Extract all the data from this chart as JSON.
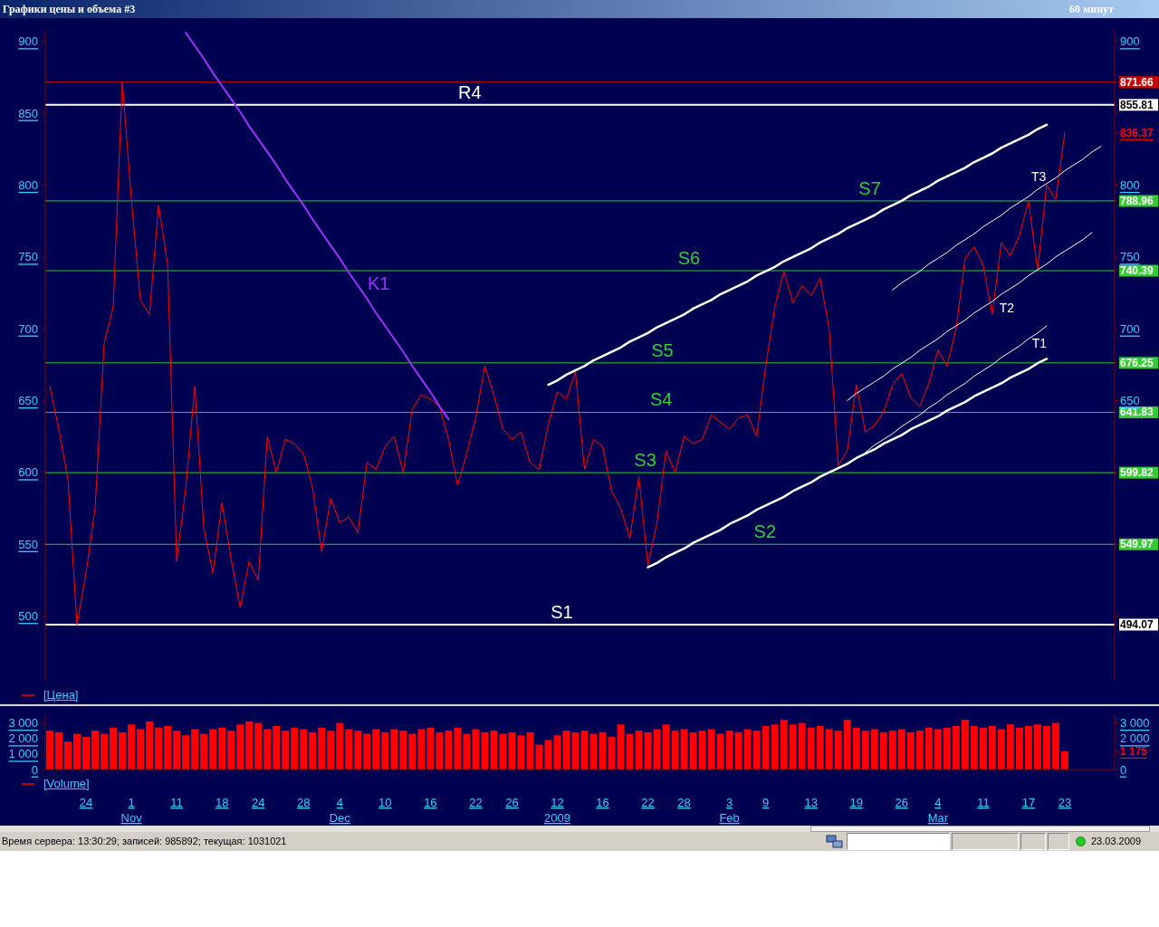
{
  "chart_data": [
    {
      "type": "line",
      "title": "Графики цены и объема #3",
      "subtitle": "60 минут",
      "categories": [
        null,
        null,
        null,
        null,
        null,
        null,
        null,
        null,
        null,
        null,
        null,
        null,
        null,
        null,
        null,
        null,
        null,
        null,
        null,
        null,
        null,
        null,
        null,
        null,
        null,
        null,
        null,
        null,
        null,
        null,
        null,
        null,
        null,
        null,
        null,
        null,
        null,
        null,
        null,
        null,
        null,
        null,
        null,
        null,
        null,
        null,
        null,
        null,
        null,
        null,
        null,
        null,
        null,
        null,
        null,
        null,
        null,
        null,
        null,
        null,
        null,
        null,
        null,
        null,
        null,
        null,
        null,
        null,
        null,
        null,
        null,
        null,
        null,
        null,
        null,
        null,
        null,
        null,
        null,
        null,
        null,
        null,
        null,
        null,
        null,
        null,
        null,
        null,
        null,
        null,
        null,
        null,
        null,
        null,
        null,
        null,
        null,
        null,
        null,
        null,
        null,
        null,
        null,
        null,
        null,
        null,
        null,
        null,
        null,
        null,
        null,
        null,
        null,
        null,
        null,
        null,
        null,
        null
      ],
      "ylim": [
        455,
        908
      ],
      "yticks": [
        500,
        550,
        600,
        650,
        700,
        750,
        800,
        850,
        900
      ],
      "y2lim": [
        455,
        908
      ],
      "y2ticks": [
        494.07,
        {
          "value": 500,
          "label": null
        },
        549.97,
        {
          "value": 550,
          "label": null
        },
        599.82,
        {
          "value": 600,
          "label": null
        },
        641.83,
        650,
        676.25,
        700,
        740.39,
        750,
        788.96,
        800,
        836.37,
        {
          "value": 850,
          "label": null
        },
        855.81,
        871.66,
        900
      ],
      "tick_labels": "y",
      "legend": "bottom left",
      "series": [
        {
          "name": "[Цена]",
          "color": "#ff0000",
          "values": [
            660,
            630,
            595,
            494,
            530,
            575,
            690,
            715,
            872,
            790,
            720,
            710,
            786,
            745,
            538,
            589,
            660,
            561,
            530,
            579,
            540,
            506,
            538,
            525,
            625,
            600,
            623,
            620,
            613,
            589,
            545,
            582,
            565,
            569,
            558,
            607,
            602,
            618,
            625,
            600,
            644,
            654,
            651,
            646,
            623,
            591,
            613,
            638,
            674,
            654,
            630,
            623,
            628,
            607,
            602,
            633,
            656,
            651,
            670,
            602,
            623,
            618,
            587,
            575,
            554,
            597,
            535,
            565,
            615,
            600,
            625,
            620,
            623,
            640,
            635,
            630,
            638,
            640,
            625,
            674,
            715,
            740,
            718,
            730,
            723,
            735,
            700,
            605,
            615,
            661,
            628,
            633,
            642,
            661,
            669,
            652,
            646,
            662,
            685,
            674,
            700,
            749,
            757,
            744,
            710,
            760,
            751,
            765,
            789,
            741,
            800,
            790,
            836.37,
            null,
            null,
            null,
            null,
            null
          ]
        },
        {
          "name": "K1",
          "color": "#9933ff",
          "values": [
            null,
            null,
            null,
            null,
            null,
            null,
            null,
            null,
            null,
            null,
            null,
            null,
            null,
            null,
            null,
            906,
            897,
            888,
            878,
            869,
            860,
            851,
            841,
            832,
            823,
            814,
            804,
            795,
            786,
            776,
            767,
            758,
            749,
            739,
            730,
            721,
            711,
            702,
            693,
            684,
            674,
            665,
            656,
            646,
            637,
            null,
            null,
            null,
            null,
            null,
            null,
            null,
            null,
            null,
            null,
            null,
            null,
            null,
            null,
            null,
            null,
            null,
            null,
            null,
            null,
            null,
            null,
            null,
            null,
            null,
            null,
            null,
            null,
            null,
            null,
            null,
            null,
            null,
            null,
            null,
            null,
            null,
            null,
            null,
            null,
            null,
            null,
            null,
            null,
            null,
            null,
            null,
            null,
            null,
            null,
            null,
            null,
            null,
            null,
            null,
            null,
            null,
            null,
            null,
            null,
            null,
            null,
            null,
            null,
            null,
            null,
            null,
            null,
            null,
            null,
            null,
            null,
            null
          ]
        },
        {
          "color": "#ffffff",
          "values": [
            null,
            null,
            null,
            null,
            null,
            null,
            null,
            null,
            null,
            null,
            null,
            null,
            null,
            null,
            null,
            null,
            null,
            null,
            null,
            null,
            null,
            null,
            null,
            null,
            null,
            null,
            null,
            null,
            null,
            null,
            null,
            null,
            null,
            null,
            null,
            null,
            null,
            null,
            null,
            null,
            null,
            null,
            null,
            null,
            null,
            null,
            null,
            null,
            null,
            null,
            null,
            null,
            null,
            null,
            null,
            661,
            664,
            668,
            671,
            674,
            678,
            681,
            684,
            687,
            691,
            694,
            697,
            701,
            704,
            707,
            710,
            714,
            717,
            720,
            724,
            727,
            730,
            733,
            737,
            740,
            743,
            747,
            750,
            753,
            756,
            760,
            763,
            766,
            770,
            773,
            776,
            779,
            783,
            786,
            789,
            793,
            796,
            799,
            803,
            806,
            809,
            812,
            816,
            819,
            822,
            826,
            829,
            832,
            835,
            839,
            842,
            null,
            null,
            null,
            null,
            null,
            null,
            null
          ]
        },
        {
          "color": "#ffffff",
          "values": [
            null,
            null,
            null,
            null,
            null,
            null,
            null,
            null,
            null,
            null,
            null,
            null,
            null,
            null,
            null,
            null,
            null,
            null,
            null,
            null,
            null,
            null,
            null,
            null,
            null,
            null,
            null,
            null,
            null,
            null,
            null,
            null,
            null,
            null,
            null,
            null,
            null,
            null,
            null,
            null,
            null,
            null,
            null,
            null,
            null,
            null,
            null,
            null,
            null,
            null,
            null,
            null,
            null,
            null,
            null,
            null,
            null,
            null,
            null,
            null,
            null,
            null,
            null,
            null,
            null,
            null,
            534,
            537,
            541,
            544,
            547,
            551,
            554,
            557,
            560,
            564,
            567,
            570,
            574,
            577,
            580,
            583,
            587,
            590,
            593,
            597,
            600,
            603,
            606,
            610,
            613,
            616,
            620,
            623,
            626,
            630,
            633,
            636,
            639,
            643,
            646,
            649,
            653,
            656,
            659,
            662,
            666,
            669,
            672,
            676,
            679,
            null,
            null,
            null,
            null,
            null,
            null,
            null
          ]
        },
        {
          "name": "T1",
          "color": "#ffffff",
          "values": [
            null,
            null,
            null,
            null,
            null,
            null,
            null,
            null,
            null,
            null,
            null,
            null,
            null,
            null,
            null,
            null,
            null,
            null,
            null,
            null,
            null,
            null,
            null,
            null,
            null,
            null,
            null,
            null,
            null,
            null,
            null,
            null,
            null,
            null,
            null,
            null,
            null,
            null,
            null,
            null,
            null,
            null,
            null,
            null,
            null,
            null,
            null,
            null,
            null,
            null,
            null,
            null,
            null,
            null,
            null,
            null,
            null,
            null,
            null,
            null,
            null,
            null,
            null,
            null,
            null,
            null,
            null,
            null,
            null,
            null,
            null,
            null,
            null,
            null,
            null,
            null,
            null,
            null,
            null,
            null,
            null,
            null,
            null,
            null,
            null,
            null,
            null,
            null,
            null,
            null,
            614,
            619,
            623,
            627,
            632,
            636,
            640,
            645,
            649,
            654,
            658,
            662,
            667,
            671,
            675,
            680,
            684,
            688,
            693,
            697,
            702,
            null,
            null,
            null,
            null,
            null,
            null,
            null
          ]
        },
        {
          "name": "T2",
          "color": "#ffffff",
          "values": [
            null,
            null,
            null,
            null,
            null,
            null,
            null,
            null,
            null,
            null,
            null,
            null,
            null,
            null,
            null,
            null,
            null,
            null,
            null,
            null,
            null,
            null,
            null,
            null,
            null,
            null,
            null,
            null,
            null,
            null,
            null,
            null,
            null,
            null,
            null,
            null,
            null,
            null,
            null,
            null,
            null,
            null,
            null,
            null,
            null,
            null,
            null,
            null,
            null,
            null,
            null,
            null,
            null,
            null,
            null,
            null,
            null,
            null,
            null,
            null,
            null,
            null,
            null,
            null,
            null,
            null,
            null,
            null,
            null,
            null,
            null,
            null,
            null,
            null,
            null,
            null,
            null,
            null,
            null,
            null,
            null,
            null,
            null,
            null,
            null,
            null,
            null,
            null,
            650,
            655,
            659,
            663,
            667,
            672,
            676,
            680,
            685,
            689,
            693,
            698,
            702,
            706,
            711,
            715,
            719,
            724,
            728,
            732,
            737,
            741,
            745,
            750,
            754,
            758,
            762,
            767,
            null,
            null
          ]
        },
        {
          "name": "T3",
          "color": "#ffffff",
          "values": [
            null,
            null,
            null,
            null,
            null,
            null,
            null,
            null,
            null,
            null,
            null,
            null,
            null,
            null,
            null,
            null,
            null,
            null,
            null,
            null,
            null,
            null,
            null,
            null,
            null,
            null,
            null,
            null,
            null,
            null,
            null,
            null,
            null,
            null,
            null,
            null,
            null,
            null,
            null,
            null,
            null,
            null,
            null,
            null,
            null,
            null,
            null,
            null,
            null,
            null,
            null,
            null,
            null,
            null,
            null,
            null,
            null,
            null,
            null,
            null,
            null,
            null,
            null,
            null,
            null,
            null,
            null,
            null,
            null,
            null,
            null,
            null,
            null,
            null,
            null,
            null,
            null,
            null,
            null,
            null,
            null,
            null,
            null,
            null,
            null,
            null,
            null,
            null,
            null,
            null,
            null,
            null,
            null,
            727,
            732,
            736,
            740,
            745,
            749,
            753,
            758,
            762,
            766,
            771,
            775,
            779,
            784,
            788,
            792,
            797,
            801,
            805,
            810,
            814,
            818,
            823,
            827,
            null
          ]
        }
      ],
      "ref_lines": [
        {
          "axis": "y",
          "value": 871.66,
          "color": "#cc0000"
        },
        {
          "axis": "y",
          "value": 855.81,
          "label": "R4",
          "color": "#ffffff"
        },
        {
          "axis": "y",
          "value": 788.96,
          "label": "S7",
          "color": "#33cc33"
        },
        {
          "axis": "y",
          "value": 740.39,
          "label": "S6",
          "color": "#33cc33"
        },
        {
          "axis": "y",
          "value": 676.25,
          "label": "S5",
          "color": "#33cc33"
        },
        {
          "axis": "y",
          "value": 641.83,
          "label": "S4",
          "color": "#33cc33"
        },
        {
          "axis": "y",
          "value": 599.82,
          "label": "S3",
          "color": "#33cc33"
        },
        {
          "axis": "y",
          "value": 549.97,
          "label": "S2",
          "color": "#33cc33"
        },
        {
          "axis": "y",
          "value": 494.07,
          "label": "S1",
          "color": "#ffffff"
        }
      ]
    },
    {
      "type": "bar",
      "categories": [
        null,
        null,
        null,
        null,
        "24",
        null,
        null,
        null,
        null,
        "1\nNov",
        null,
        null,
        null,
        null,
        "11",
        null,
        null,
        null,
        null,
        "18",
        null,
        null,
        null,
        "24",
        null,
        null,
        null,
        null,
        "28",
        null,
        null,
        null,
        "4\nDec",
        null,
        null,
        null,
        null,
        "10",
        null,
        null,
        null,
        null,
        "16",
        null,
        null,
        null,
        null,
        "22",
        null,
        null,
        null,
        "26",
        null,
        null,
        null,
        null,
        "12\n2009",
        null,
        null,
        null,
        null,
        "16",
        null,
        null,
        null,
        null,
        "22",
        null,
        null,
        null,
        "28",
        null,
        null,
        null,
        null,
        "3\nFeb",
        null,
        null,
        null,
        "9",
        null,
        null,
        null,
        null,
        "13",
        null,
        null,
        null,
        null,
        "19",
        null,
        null,
        null,
        null,
        "26",
        null,
        null,
        null,
        "4\nMar",
        null,
        null,
        null,
        null,
        "11",
        null,
        null,
        null,
        null,
        "17",
        null,
        null,
        null,
        "23",
        null,
        null,
        null,
        null,
        null
      ],
      "ylim": [
        0,
        3500
      ],
      "yticks": [
        0,
        {
          "value": 1000,
          "label": "1 000"
        },
        {
          "value": 2000,
          "label": "2 000"
        },
        {
          "value": 3000,
          "label": "3 000"
        }
      ],
      "y2lim": [
        0,
        3500
      ],
      "y2ticks": [
        0,
        {
          "value": 1000,
          "label": null
        },
        {
          "value": 1175,
          "label": "1 175"
        },
        {
          "value": 2000,
          "label": "2 000"
        },
        {
          "value": 3000,
          "label": "3 000"
        }
      ],
      "legend": "bottom left",
      "series": [
        {
          "name": "[Volume]",
          "color": "#ff0000",
          "values": [
            2500,
            2400,
            1800,
            2300,
            2100,
            2500,
            2300,
            2700,
            2400,
            2900,
            2600,
            3100,
            2700,
            2800,
            2500,
            2200,
            2600,
            2300,
            2600,
            2700,
            2500,
            2900,
            3100,
            3000,
            2600,
            2800,
            2500,
            2700,
            2600,
            2400,
            2700,
            2500,
            3000,
            2600,
            2500,
            2300,
            2600,
            2400,
            2600,
            2500,
            2300,
            2600,
            2700,
            2400,
            2500,
            2700,
            2300,
            2600,
            2400,
            2500,
            2300,
            2400,
            2200,
            2400,
            1600,
            1900,
            2200,
            2500,
            2400,
            2500,
            2300,
            2400,
            2100,
            2900,
            2300,
            2500,
            2400,
            2600,
            2900,
            2500,
            2600,
            2400,
            2500,
            2600,
            2300,
            2500,
            2400,
            2600,
            2500,
            2800,
            2900,
            3200,
            2900,
            3000,
            2700,
            2800,
            2600,
            2500,
            3200,
            2700,
            2500,
            2600,
            2400,
            2500,
            2600,
            2400,
            2500,
            2700,
            2600,
            2700,
            2800,
            3200,
            2800,
            2700,
            2800,
            2600,
            2900,
            2700,
            2800,
            2900,
            2800,
            3000,
            1175,
            null,
            null,
            null,
            null,
            null
          ]
        }
      ],
      "annotations": [
        "Время сервера: 13:30:29; записей: 985892; текущая: 1031021",
        "23.03.2009"
      ]
    }
  ]
}
